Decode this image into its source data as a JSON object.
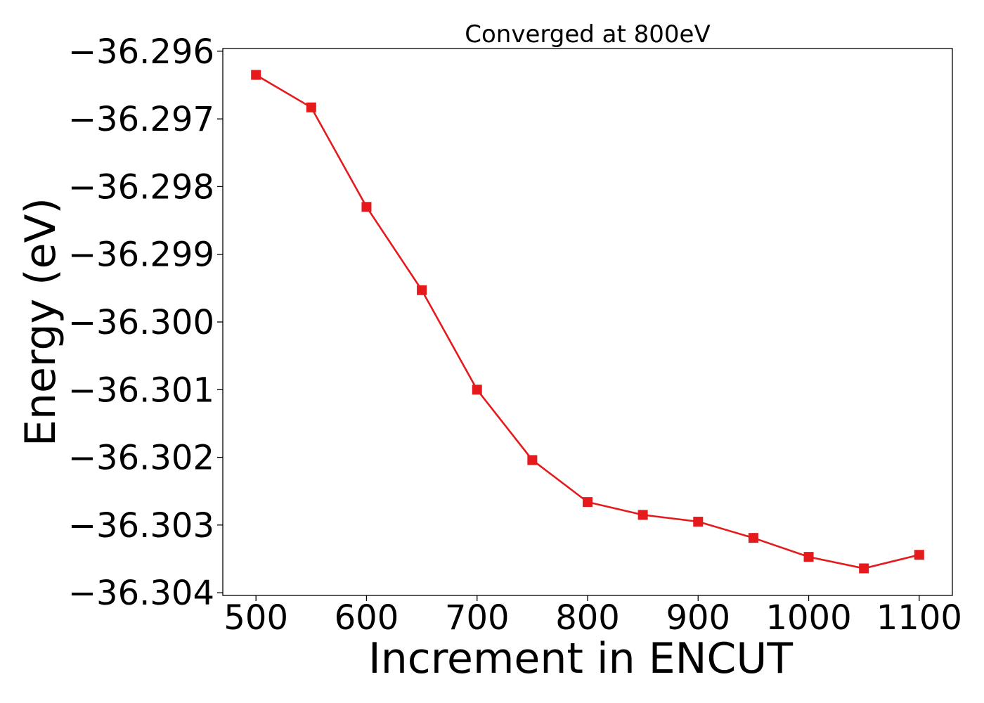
{
  "chart_data": {
    "type": "line",
    "title": "Converged at 800eV",
    "xlabel": "Increment in ENCUT",
    "ylabel": "Energy (eV)",
    "x": [
      500,
      550,
      600,
      650,
      700,
      750,
      800,
      850,
      900,
      950,
      1000,
      1050,
      1100
    ],
    "series": [
      {
        "values": [
          -36.29635,
          -36.29683,
          -36.2983,
          -36.29953,
          -36.301,
          -36.30204,
          -36.30266,
          -36.30285,
          -36.30295,
          -36.30319,
          -36.30347,
          -36.30364,
          -36.30344
        ],
        "color": "#e41a1c",
        "marker": "square"
      }
    ],
    "xlim": [
      470,
      1130
    ],
    "ylim": [
      -36.30404,
      -36.29596
    ],
    "xticks": [
      500,
      600,
      700,
      800,
      900,
      1000,
      1100
    ],
    "xtick_labels": [
      "500",
      "600",
      "700",
      "800",
      "900",
      "1000",
      "1100"
    ],
    "yticks": [
      -36.296,
      -36.297,
      -36.298,
      -36.299,
      -36.3,
      -36.301,
      -36.302,
      -36.303,
      -36.304
    ],
    "ytick_labels": [
      "−36.296",
      "−36.297",
      "−36.298",
      "−36.299",
      "−36.300",
      "−36.301",
      "−36.302",
      "−36.303",
      "−36.304"
    ],
    "grid": false,
    "legend": "none"
  }
}
